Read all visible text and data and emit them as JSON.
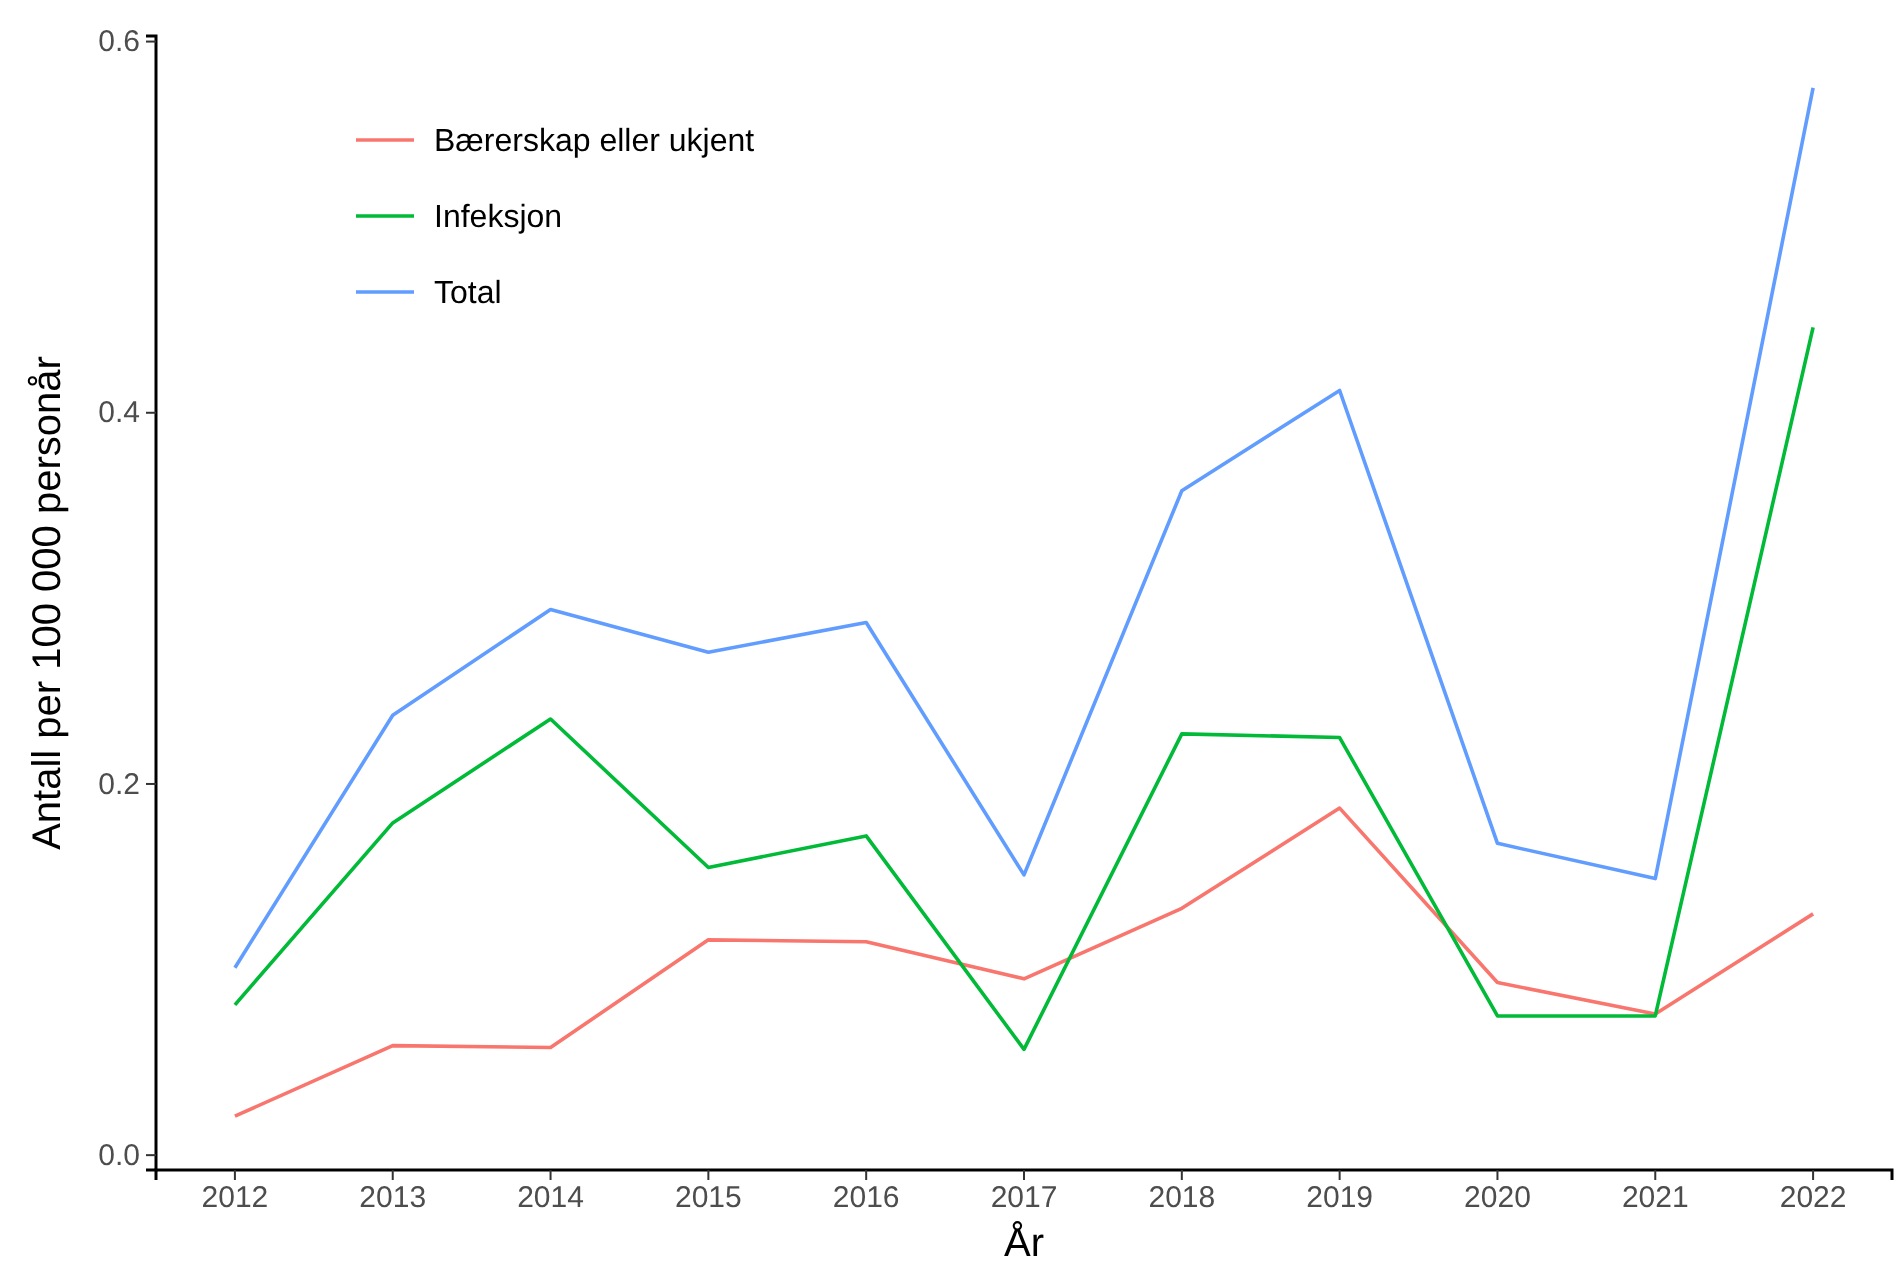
{
  "chart_data": {
    "type": "line",
    "xlabel": "År",
    "ylabel": "Antall per 100 000 personår",
    "x": [
      2012,
      2013,
      2014,
      2015,
      2016,
      2017,
      2018,
      2019,
      2020,
      2021,
      2022
    ],
    "xlim": [
      2011.5,
      2022.5
    ],
    "xticks": [
      2012,
      2013,
      2014,
      2015,
      2016,
      2017,
      2018,
      2019,
      2020,
      2021,
      2022
    ],
    "ylim": [
      -0.008,
      0.603
    ],
    "yticks": [
      {
        "value": 0,
        "label": "0.0"
      },
      {
        "value": 0.2,
        "label": "0.2"
      },
      {
        "value": 0.4,
        "label": "0.4"
      },
      {
        "value": 0.6,
        "label": "0.6"
      }
    ],
    "grid": false,
    "legend": "top left",
    "line_style": "solid",
    "series": [
      {
        "name": "Bærerskap eller ukjent",
        "color": "#f8766d",
        "values": [
          0.021,
          0.059,
          0.058,
          0.116,
          0.115,
          0.095,
          0.133,
          0.187,
          0.093,
          0.076,
          0.13
        ]
      },
      {
        "name": "Infeksjon",
        "color": "#00ba38",
        "values": [
          0.081,
          0.179,
          0.235,
          0.155,
          0.172,
          0.057,
          0.227,
          0.225,
          0.075,
          0.075,
          0.446
        ]
      },
      {
        "name": "Total",
        "color": "#619cff",
        "values": [
          0.101,
          0.237,
          0.294,
          0.271,
          0.287,
          0.151,
          0.358,
          0.412,
          0.168,
          0.149,
          0.575
        ]
      }
    ]
  }
}
